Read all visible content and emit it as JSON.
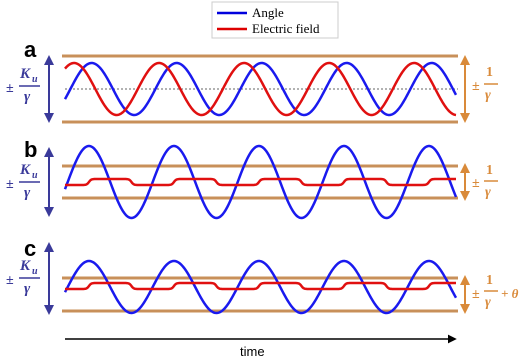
{
  "legend": {
    "items": [
      {
        "label": "Angle",
        "color": "#0000dd"
      },
      {
        "label": "Electric field",
        "color": "#dd0000"
      }
    ]
  },
  "axis": {
    "xlabel": "time"
  },
  "colors": {
    "angle": "#1a1aee",
    "field": "#e01010",
    "bound": "#c8905a",
    "left_label": "#3a3a9a",
    "right_label": "#d98a3a"
  },
  "panels": [
    {
      "letter": "a",
      "left_label": {
        "sign": "±",
        "numerator": "K",
        "subscript": "u",
        "denominator": "γ"
      },
      "right_label": {
        "sign": "±",
        "numerator": "1",
        "denominator": "γ",
        "suffix": ""
      },
      "periods": 4.6,
      "field_shape": "sine"
    },
    {
      "letter": "b",
      "left_label": {
        "sign": "±",
        "numerator": "K",
        "subscript": "u",
        "denominator": "γ"
      },
      "right_label": {
        "sign": "±",
        "numerator": "1",
        "denominator": "γ",
        "suffix": ""
      },
      "periods": 4.6,
      "field_shape": "spiky"
    },
    {
      "letter": "c",
      "left_label": {
        "sign": "±",
        "numerator": "K",
        "subscript": "u",
        "denominator": "γ"
      },
      "right_label": {
        "sign": "±",
        "numerator": "1",
        "denominator": "γ",
        "suffix": "+ θ"
      },
      "periods": 4.6,
      "field_shape": "spiky-offset"
    }
  ]
}
